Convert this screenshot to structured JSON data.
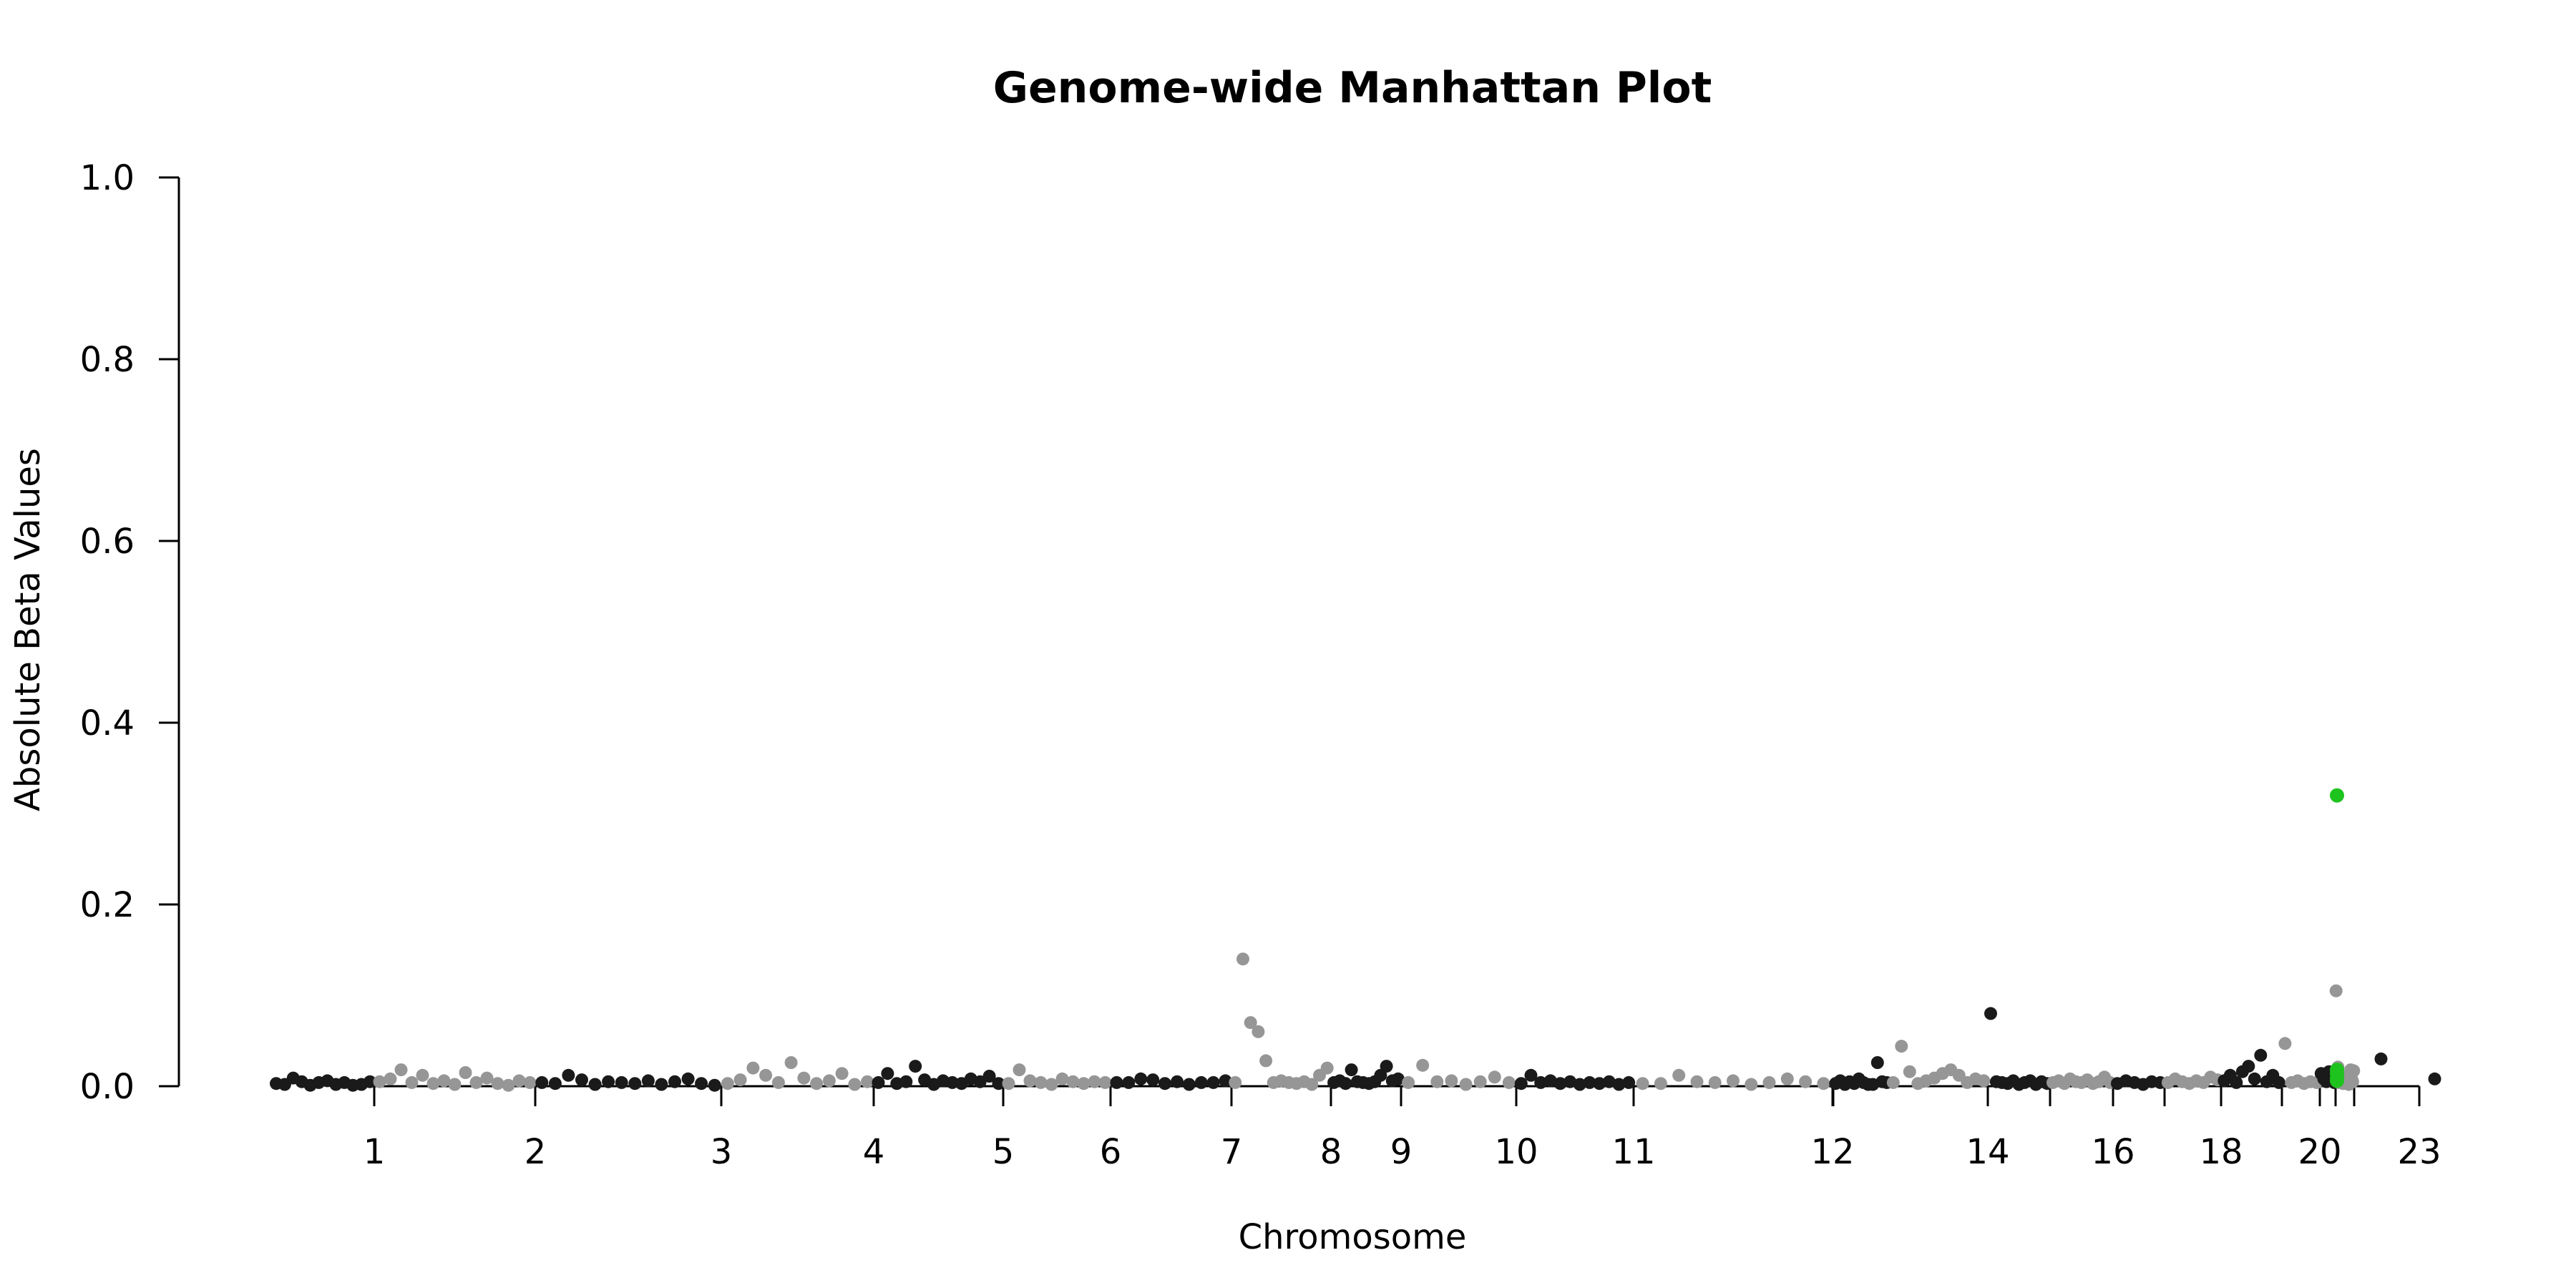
{
  "chart_data": {
    "type": "scatter",
    "title": "Genome-wide Manhattan Plot",
    "xlabel": "Chromosome",
    "ylabel": "Absolute Beta Values",
    "ylim": [
      0,
      1.0
    ],
    "y_ticks": [
      "0.0",
      "0.2",
      "0.4",
      "0.6",
      "0.8",
      "1.0"
    ],
    "x_tick_labels": [
      "1",
      "2",
      "3",
      "4",
      "5",
      "6",
      "7",
      "8",
      "9",
      "10",
      "11",
      "12",
      "14",
      "16",
      "18",
      "20",
      "23"
    ],
    "x_ticks_total": 23,
    "grid": false,
    "legend": "none",
    "colors": {
      "odd_chromosome": "#1a1a1a",
      "even_chromosome": "#969696",
      "highlight": "#1ec31e"
    },
    "series": [
      {
        "chromosome": 1,
        "values": [
          0.003,
          0.002,
          0.009,
          0.005,
          0.001,
          0.004,
          0.006,
          0.002,
          0.004,
          0.001,
          0.002,
          0.005
        ]
      },
      {
        "chromosome": 2,
        "values": [
          0.005,
          0.008,
          0.018,
          0.004,
          0.012,
          0.003,
          0.006,
          0.002,
          0.015,
          0.004,
          0.009,
          0.003,
          0.001,
          0.006,
          0.004
        ]
      },
      {
        "chromosome": 3,
        "values": [
          0.004,
          0.003,
          0.012,
          0.007,
          0.002,
          0.005,
          0.004,
          0.003,
          0.006,
          0.002,
          0.005,
          0.008,
          0.003,
          0.001
        ]
      },
      {
        "chromosome": 4,
        "values": [
          0.003,
          0.007,
          0.02,
          0.012,
          0.004,
          0.026,
          0.009,
          0.003,
          0.006,
          0.014,
          0.002,
          0.005
        ]
      },
      {
        "chromosome": 5,
        "values": [
          0.004,
          0.014,
          0.003,
          0.005,
          0.022,
          0.007,
          0.002,
          0.006,
          0.004,
          0.003,
          0.008,
          0.005,
          0.011,
          0.003
        ]
      },
      {
        "chromosome": 6,
        "values": [
          0.003,
          0.018,
          0.006,
          0.004,
          0.002,
          0.008,
          0.005,
          0.003,
          0.005,
          0.004
        ]
      },
      {
        "chromosome": 7,
        "values": [
          0.004,
          0.004,
          0.008,
          0.007,
          0.003,
          0.005,
          0.002,
          0.004,
          0.004,
          0.006
        ]
      },
      {
        "chromosome": 8,
        "values": [
          0.004,
          0.14,
          0.07,
          0.06,
          0.028,
          0.004,
          0.006,
          0.004,
          0.003,
          0.005,
          0.002,
          0.012,
          0.02
        ]
      },
      {
        "chromosome": 9,
        "values": [
          0.004,
          0.006,
          0.003,
          0.018,
          0.005,
          0.004,
          0.003,
          0.005,
          0.012,
          0.022,
          0.006,
          0.008
        ]
      },
      {
        "chromosome": 10,
        "values": [
          0.004,
          0.023,
          0.005,
          0.006,
          0.002,
          0.005,
          0.01,
          0.004
        ]
      },
      {
        "chromosome": 11,
        "values": [
          0.003,
          0.012,
          0.004,
          0.006,
          0.003,
          0.005,
          0.002,
          0.004,
          0.003,
          0.005,
          0.002,
          0.004
        ]
      },
      {
        "chromosome": 12,
        "values": [
          0.003,
          0.003,
          0.012,
          0.005,
          0.004,
          0.006,
          0.002,
          0.004,
          0.008,
          0.005,
          0.003
        ]
      },
      {
        "chromosome": 13,
        "values": [
          0.003,
          0.006,
          0.002,
          0.005,
          0.003,
          0.008,
          0.004,
          0.002,
          0.002,
          0.026,
          0.005,
          0.004
        ]
      },
      {
        "chromosome": 14,
        "values": [
          0.004,
          0.044,
          0.016,
          0.003,
          0.006,
          0.009,
          0.014,
          0.018,
          0.012,
          0.004,
          0.008,
          0.006
        ]
      },
      {
        "chromosome": 15,
        "values": [
          0.08,
          0.005,
          0.004,
          0.003,
          0.006,
          0.002,
          0.004,
          0.006,
          0.002,
          0.005,
          0.003
        ]
      },
      {
        "chromosome": 16,
        "values": [
          0.004,
          0.006,
          0.003,
          0.008,
          0.005,
          0.004,
          0.007,
          0.003,
          0.005,
          0.01,
          0.004
        ]
      },
      {
        "chromosome": 17,
        "values": [
          0.003,
          0.006,
          0.004,
          0.002,
          0.005,
          0.004
        ]
      },
      {
        "chromosome": 18,
        "values": [
          0.004,
          0.008,
          0.005,
          0.003,
          0.006,
          0.004,
          0.01,
          0.007
        ]
      },
      {
        "chromosome": 19,
        "values": [
          0.006,
          0.012,
          0.004,
          0.016,
          0.022,
          0.008,
          0.034,
          0.005,
          0.012,
          0.004
        ]
      },
      {
        "chromosome": 20,
        "values": [
          0.047,
          0.004,
          0.006,
          0.003,
          0.005,
          0.004
        ]
      },
      {
        "chromosome": 21,
        "values": [
          0.014,
          0.008,
          0.005,
          0.016,
          0.006,
          0.004
        ]
      },
      {
        "chromosome": 22,
        "values": [
          0.105,
          0.006,
          0.021,
          0.004,
          0.012,
          0.005,
          0.007,
          0.003,
          0.003,
          0.005,
          0.004,
          0.007,
          0.004,
          0.002,
          0.006,
          0.018,
          0.008,
          0.005,
          0.017
        ]
      },
      {
        "chromosome": 23,
        "values": [
          0.03,
          0.008
        ]
      }
    ],
    "highlight_points": [
      {
        "chromosome": 21,
        "value": 0.32
      },
      {
        "chromosome": 21,
        "value": 0.018
      },
      {
        "chromosome": 21,
        "value": 0.014
      },
      {
        "chromosome": 21,
        "value": 0.009
      },
      {
        "chromosome": 21,
        "value": 0.006
      }
    ]
  }
}
